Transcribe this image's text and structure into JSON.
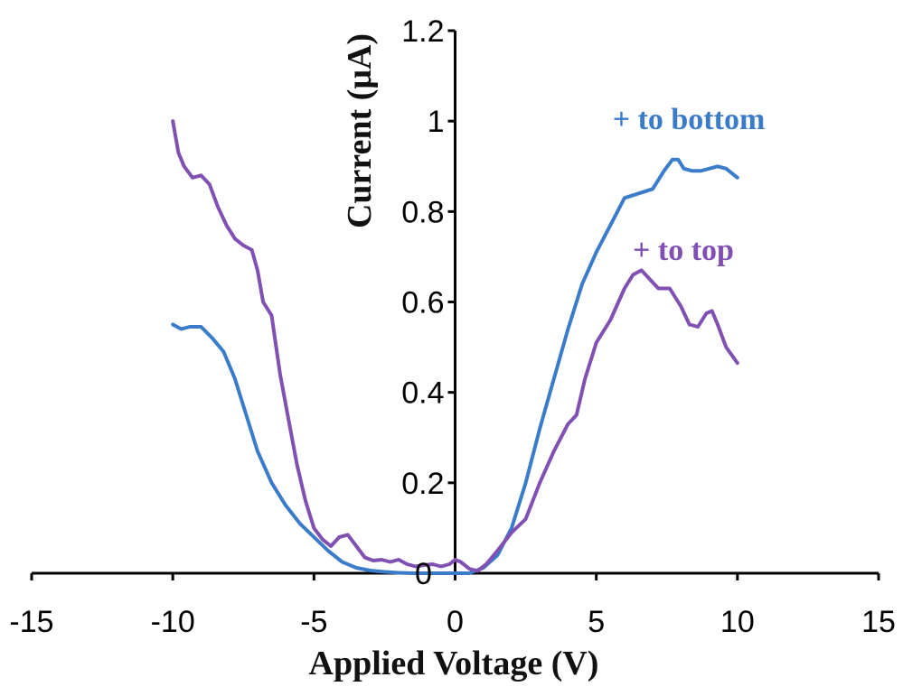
{
  "chart_data": {
    "type": "line",
    "title": "",
    "xlabel": "Applied Voltage (V)",
    "ylabel": "Current (μA)",
    "xlim": [
      -15,
      15
    ],
    "ylim": [
      0,
      1.2
    ],
    "xticks": [
      -15,
      -10,
      -5,
      0,
      5,
      10,
      15
    ],
    "xtick_labels": [
      "-15",
      "-10",
      "-5",
      "0",
      "5",
      "10",
      "15"
    ],
    "yticks": [
      0.2,
      0.4,
      0.6,
      0.8,
      1.0,
      1.2
    ],
    "ytick_labels": [
      "0.2",
      "0.4",
      "0.6",
      "0.8",
      "1",
      "1.2"
    ],
    "origin_label": "0",
    "grid": false,
    "series": [
      {
        "name": "+ to bottom",
        "color": "#3A7CC9",
        "x": [
          -10,
          -9.7,
          -9.4,
          -9.0,
          -8.6,
          -8.2,
          -7.8,
          -7.4,
          -7.0,
          -6.5,
          -6.0,
          -5.5,
          -5.0,
          -4.5,
          -4.0,
          -3.5,
          -3.0,
          -2.5,
          -2.0,
          -1.5,
          -1.0,
          -0.5,
          0,
          0.5,
          1.0,
          1.5,
          2.0,
          2.5,
          3.0,
          3.5,
          4.0,
          4.5,
          5.0,
          5.5,
          6.0,
          6.5,
          7.0,
          7.4,
          7.7,
          7.9,
          8.1,
          8.4,
          8.7,
          9.0,
          9.3,
          9.6,
          10.0
        ],
        "y": [
          0.55,
          0.54,
          0.545,
          0.545,
          0.52,
          0.49,
          0.43,
          0.35,
          0.27,
          0.2,
          0.15,
          0.11,
          0.08,
          0.05,
          0.025,
          0.012,
          0.006,
          0.003,
          0.001,
          0.0,
          0.0,
          0.0,
          0.0,
          0.0,
          0.012,
          0.04,
          0.1,
          0.2,
          0.32,
          0.43,
          0.54,
          0.64,
          0.71,
          0.77,
          0.83,
          0.84,
          0.85,
          0.89,
          0.915,
          0.915,
          0.895,
          0.89,
          0.89,
          0.895,
          0.9,
          0.895,
          0.875
        ]
      },
      {
        "name": "+ to top",
        "color": "#8050B2",
        "x": [
          -10,
          -9.8,
          -9.6,
          -9.3,
          -9.0,
          -8.7,
          -8.4,
          -8.1,
          -7.8,
          -7.5,
          -7.2,
          -7.0,
          -6.8,
          -6.5,
          -6.2,
          -5.9,
          -5.6,
          -5.3,
          -5.0,
          -4.7,
          -4.4,
          -4.1,
          -3.8,
          -3.5,
          -3.2,
          -2.9,
          -2.6,
          -2.3,
          -2.0,
          -1.7,
          -1.4,
          -1.1,
          -0.8,
          -0.5,
          -0.2,
          0,
          0.2,
          0.5,
          0.8,
          1.1,
          1.5,
          2.0,
          2.5,
          3.0,
          3.5,
          4.0,
          4.3,
          4.6,
          5.0,
          5.5,
          6.0,
          6.3,
          6.6,
          6.9,
          7.2,
          7.6,
          8.0,
          8.3,
          8.6,
          8.9,
          9.1,
          9.3,
          9.6,
          10.0
        ],
        "y": [
          1.0,
          0.93,
          0.9,
          0.875,
          0.88,
          0.86,
          0.81,
          0.77,
          0.74,
          0.725,
          0.715,
          0.67,
          0.6,
          0.57,
          0.44,
          0.34,
          0.24,
          0.16,
          0.1,
          0.075,
          0.06,
          0.08,
          0.085,
          0.06,
          0.035,
          0.028,
          0.03,
          0.025,
          0.03,
          0.02,
          0.015,
          0.018,
          0.02,
          0.015,
          0.02,
          0.03,
          0.025,
          0.01,
          0.005,
          0.02,
          0.05,
          0.09,
          0.12,
          0.2,
          0.27,
          0.33,
          0.35,
          0.43,
          0.51,
          0.56,
          0.63,
          0.66,
          0.67,
          0.65,
          0.63,
          0.63,
          0.59,
          0.55,
          0.545,
          0.575,
          0.58,
          0.55,
          0.5,
          0.465
        ]
      }
    ]
  }
}
